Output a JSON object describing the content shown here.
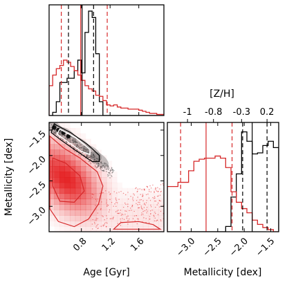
{
  "chart_data": [
    {
      "panel": "age-histogram",
      "type": "histogram",
      "x_range": [
        0.35,
        1.95
      ],
      "y_range": [
        0,
        1.0
      ],
      "xticks": [
        0.8,
        1.2,
        1.6
      ],
      "bin_edges": [
        0.35,
        0.4,
        0.45,
        0.5,
        0.55,
        0.6,
        0.65,
        0.7,
        0.75,
        0.8,
        0.85,
        0.9,
        0.95,
        1.0,
        1.05,
        1.1,
        1.15,
        1.2,
        1.25,
        1.3,
        1.35,
        1.4,
        1.45,
        1.5,
        1.55,
        1.6,
        1.65,
        1.7,
        1.75,
        1.8,
        1.85,
        1.9,
        1.95
      ],
      "series": [
        {
          "color": "#000000",
          "values": [
            0.0,
            0.03,
            0.13,
            0.31,
            0.31,
            0.35,
            0.35,
            0.42,
            0.52,
            0.4,
            0.78,
            0.98,
            0.92,
            0.58,
            0.13,
            0.0,
            0.0,
            0.0,
            0.0,
            0.0,
            0.0,
            0.0,
            0.0,
            0.0,
            0.0,
            0.0,
            0.0,
            0.0,
            0.0,
            0.0,
            0.0,
            0.0
          ]
        },
        {
          "color": "#d62728",
          "values": [
            0.28,
            0.38,
            0.44,
            0.47,
            0.52,
            0.5,
            0.46,
            0.42,
            0.38,
            0.33,
            0.28,
            0.25,
            0.23,
            0.19,
            0.18,
            0.14,
            0.1,
            0.09,
            0.1,
            0.08,
            0.07,
            0.07,
            0.06,
            0.06,
            0.06,
            0.05,
            0.04,
            0.03,
            0.02,
            0.02,
            0.01,
            0.01
          ]
        }
      ],
      "vlines": [
        {
          "x": 0.52,
          "color": "#d62728",
          "style": "dashed"
        },
        {
          "x": 0.79,
          "color": "#d62728",
          "style": "solid"
        },
        {
          "x": 1.16,
          "color": "#d62728",
          "style": "dashed"
        },
        {
          "x": 0.62,
          "color": "#000000",
          "style": "dashed"
        },
        {
          "x": 0.81,
          "color": "#000000",
          "style": "solid"
        },
        {
          "x": 0.97,
          "color": "#000000",
          "style": "dashed"
        }
      ]
    },
    {
      "panel": "age-metallicity-density",
      "type": "heatmap",
      "xlabel": "Age [Gyr]",
      "ylabel": "Metallicity [dex]",
      "x_range": [
        0.35,
        1.95
      ],
      "y_range": [
        -3.5,
        -1.35
      ],
      "xticks": [
        0.8,
        1.2,
        1.6
      ],
      "yticks": [
        -1.5,
        -2.0,
        -2.5,
        -3.0
      ],
      "ytick_labels": [
        "−1.5",
        "−2.0",
        "−2.5",
        "−3.0"
      ],
      "red_population": {
        "center": [
          0.58,
          -2.45
        ],
        "peak_density": 1.0
      },
      "black_population": {
        "center": [
          0.85,
          -1.72
        ],
        "trend": "decreasing metallicity with age",
        "peak_density": 1.0
      },
      "contour_colors": [
        "#d62728",
        "#000000"
      ]
    },
    {
      "panel": "metallicity-histogram",
      "type": "histogram",
      "xlabel": "Metallicity [dex]",
      "top_axis_label": "[Z/H]",
      "x_range": [
        -3.45,
        -1.35
      ],
      "y_range": [
        0,
        1.0
      ],
      "xticks": [
        -3.0,
        -2.5,
        -2.0,
        -1.5
      ],
      "xtick_labels": [
        "−3.0",
        "−2.5",
        "−2.0",
        "−1.5"
      ],
      "top_ticks": [
        -1,
        -0.8,
        -0.3,
        0.2
      ],
      "top_tick_labels": [
        "-1",
        "-0.8",
        "-0.3",
        "0.2"
      ],
      "top_tick_positions": [
        -3.07,
        -2.58,
        -2.05,
        -1.57
      ],
      "bin_edges": [
        -3.45,
        -3.35,
        -3.25,
        -3.15,
        -3.05,
        -2.95,
        -2.85,
        -2.75,
        -2.65,
        -2.55,
        -2.45,
        -2.35,
        -2.25,
        -2.15,
        -2.05,
        -1.95,
        -1.85,
        -1.75,
        -1.65,
        -1.55,
        -1.45,
        -1.35
      ],
      "series": [
        {
          "color": "#000000",
          "values": [
            0.0,
            0.0,
            0.0,
            0.0,
            0.0,
            0.0,
            0.0,
            0.0,
            0.0,
            0.0,
            0.0,
            0.05,
            0.33,
            0.55,
            0.95,
            0.86,
            0.74,
            0.75,
            0.82,
            0.86,
            0.8
          ]
        },
        {
          "color": "#d62728",
          "values": [
            0.43,
            0.43,
            0.47,
            0.47,
            0.58,
            0.67,
            0.69,
            0.7,
            0.7,
            0.72,
            0.7,
            0.61,
            0.38,
            0.28,
            0.22,
            0.18,
            0.11,
            0.07,
            0.04,
            0.02,
            0.0
          ]
        }
      ],
      "vlines": [
        {
          "x": -3.2,
          "color": "#d62728",
          "style": "dashed"
        },
        {
          "x": -2.72,
          "color": "#d62728",
          "style": "solid"
        },
        {
          "x": -2.23,
          "color": "#d62728",
          "style": "dashed"
        },
        {
          "x": -2.03,
          "color": "#000000",
          "style": "dashed"
        },
        {
          "x": -1.85,
          "color": "#000000",
          "style": "solid"
        },
        {
          "x": -1.57,
          "color": "#000000",
          "style": "dashed"
        }
      ]
    }
  ]
}
